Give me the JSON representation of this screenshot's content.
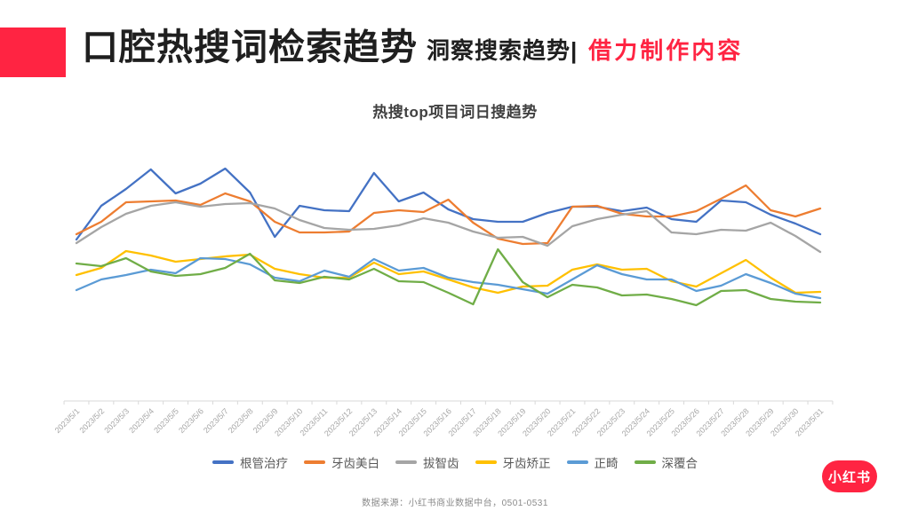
{
  "header": {
    "title": "口腔热搜词检索趋势",
    "subtitle": "洞察搜索趋势|",
    "highlight": "借力制作内容",
    "accent_color": "#FF2442"
  },
  "chart": {
    "title": "热搜top项目词日搜趋势"
  },
  "chart_data": {
    "type": "line",
    "title": "热搜top项目词日搜趋势",
    "categories": [
      "2023/5/1",
      "2023/5/2",
      "2023/5/3",
      "2023/5/4",
      "2023/5/5",
      "2023/5/6",
      "2023/5/7",
      "2023/5/8",
      "2023/5/9",
      "2023/5/10",
      "2023/5/11",
      "2023/5/12",
      "2023/5/13",
      "2023/5/14",
      "2023/5/15",
      "2023/5/16",
      "2023/5/17",
      "2023/5/18",
      "2023/5/19",
      "2023/5/20",
      "2023/5/21",
      "2023/5/22",
      "2023/5/23",
      "2023/5/24",
      "2023/5/25",
      "2023/5/26",
      "2023/5/27",
      "2023/5/28",
      "2023/5/29",
      "2023/5/30",
      "2023/5/31"
    ],
    "series": [
      {
        "id": "root-canal-treatment",
        "name": "根管治疗",
        "color": "#4472C4",
        "values": [
          182,
          220,
          239,
          261,
          234,
          245,
          262,
          235,
          185,
          220,
          215,
          214,
          257,
          225,
          235,
          216,
          205,
          202,
          202,
          212,
          219,
          219,
          214,
          218,
          205,
          202,
          226,
          224,
          210,
          200,
          188
        ]
      },
      {
        "id": "teeth-whitening",
        "name": "牙齿美白",
        "color": "#ED7D31",
        "values": [
          188,
          202,
          224,
          225,
          226,
          221,
          234,
          225,
          202,
          190,
          190,
          191,
          212,
          215,
          213,
          227,
          201,
          183,
          177,
          178,
          219,
          220,
          211,
          208,
          208,
          214,
          228,
          243,
          215,
          208,
          217
        ]
      },
      {
        "id": "wisdom-tooth-extraction",
        "name": "拔智齿",
        "color": "#A5A5A5",
        "values": [
          178,
          196,
          211,
          220,
          224,
          219,
          222,
          223,
          217,
          204,
          195,
          193,
          194,
          198,
          206,
          201,
          191,
          184,
          185,
          175,
          197,
          205,
          210,
          214,
          190,
          188,
          193,
          192,
          201,
          186,
          168
        ]
      },
      {
        "id": "teeth-alignment",
        "name": "牙齿矫正",
        "color": "#FFC000",
        "values": [
          142,
          150,
          169,
          164,
          157,
          160,
          163,
          165,
          149,
          143,
          139,
          139,
          156,
          143,
          146,
          137,
          128,
          122,
          129,
          130,
          148,
          154,
          148,
          149,
          135,
          129,
          144,
          159,
          139,
          122,
          123
        ]
      },
      {
        "id": "orthodontics",
        "name": "正畸",
        "color": "#5B9BD5",
        "values": [
          125,
          137,
          142,
          148,
          144,
          161,
          160,
          154,
          139,
          135,
          147,
          140,
          160,
          147,
          150,
          139,
          134,
          131,
          126,
          121,
          137,
          153,
          143,
          137,
          137,
          124,
          130,
          143,
          133,
          121,
          116
        ]
      },
      {
        "id": "deep-overbite",
        "name": "深覆合",
        "color": "#70AD47",
        "values": [
          155,
          152,
          161,
          146,
          141,
          143,
          150,
          166,
          136,
          133,
          140,
          137,
          149,
          135,
          134,
          122,
          109,
          171,
          134,
          117,
          131,
          128,
          119,
          120,
          115,
          108,
          124,
          125,
          115,
          112,
          111
        ]
      }
    ],
    "xlabel": "",
    "ylabel": "",
    "ylim": [
      0,
      300
    ],
    "grid": false,
    "legend_position": "bottom",
    "note": "y-axis unlabeled in source chart; values are estimated relative daily-search index"
  },
  "axis_style": {
    "line_color": "#D9D9D9",
    "label_color": "#A6A6A6"
  },
  "footer": {
    "source": "数据来源：小红书商业数据中台，0501-0531"
  },
  "logo": {
    "text": "小红书"
  }
}
